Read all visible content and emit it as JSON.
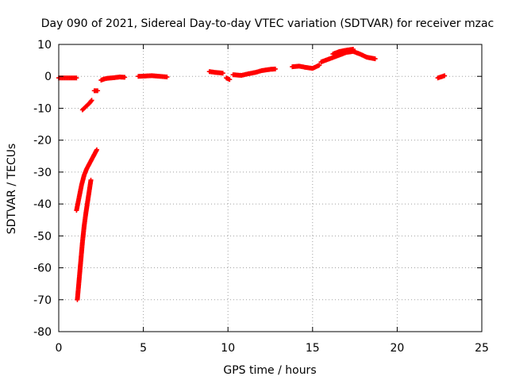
{
  "chart_data": {
    "type": "scatter",
    "title": "Day 090 of 2021, Sidereal Day-to-day VTEC variation (SDTVAR) for receiver mzac",
    "xlabel": "GPS time / hours",
    "ylabel": "SDTVAR / TECUs",
    "xlim": [
      0,
      25
    ],
    "ylim": [
      -80,
      10
    ],
    "xticks": [
      0,
      5,
      10,
      15,
      20,
      25
    ],
    "yticks": [
      10,
      0,
      -10,
      -20,
      -30,
      -40,
      -50,
      -60,
      -70,
      -80
    ],
    "grid": true,
    "marker": "+",
    "series_color": "#ff0000",
    "series": [
      {
        "name": "SDTVAR",
        "segments": [
          {
            "x": [
              0.0,
              1.05
            ],
            "y": [
              -0.5,
              -0.5
            ]
          },
          {
            "x": [
              1.05,
              1.2,
              1.35,
              1.5,
              1.65,
              1.8,
              1.95,
              2.1,
              2.25
            ],
            "y": [
              -42.0,
              -38.0,
              -34.0,
              -31.0,
              -29.0,
              -27.5,
              -26.0,
              -24.5,
              -23.0
            ]
          },
          {
            "x": [
              1.1,
              1.2,
              1.3,
              1.4,
              1.5,
              1.6,
              1.7,
              1.8,
              1.9
            ],
            "y": [
              -70.0,
              -64.0,
              -58.0,
              -52.0,
              -47.0,
              -43.0,
              -39.5,
              -36.0,
              -32.5
            ]
          },
          {
            "x": [
              1.4,
              1.6,
              1.8,
              1.95
            ],
            "y": [
              -10.5,
              -9.5,
              -8.5,
              -7.5
            ]
          },
          {
            "x": [
              2.1,
              2.3
            ],
            "y": [
              -4.5,
              -4.5
            ]
          },
          {
            "x": [
              2.5,
              2.7,
              2.9,
              3.1,
              3.3,
              3.6,
              3.9
            ],
            "y": [
              -1.2,
              -0.8,
              -0.6,
              -0.5,
              -0.4,
              -0.2,
              -0.3
            ]
          },
          {
            "x": [
              4.7,
              5.5,
              6.4
            ],
            "y": [
              0.0,
              0.2,
              -0.2
            ]
          },
          {
            "x": [
              8.9,
              9.3,
              9.7
            ],
            "y": [
              1.5,
              1.2,
              1.0
            ]
          },
          {
            "x": [
              9.9,
              10.1
            ],
            "y": [
              -0.5,
              -1.0
            ]
          },
          {
            "x": [
              10.3,
              10.8,
              11.2,
              11.6,
              12.0,
              12.5,
              12.8
            ],
            "y": [
              0.5,
              0.3,
              0.8,
              1.2,
              1.8,
              2.2,
              2.3
            ]
          },
          {
            "x": [
              13.8,
              14.2,
              14.6,
              15.0,
              15.4
            ],
            "y": [
              3.0,
              3.2,
              2.8,
              2.5,
              3.5
            ]
          },
          {
            "x": [
              15.5,
              16.0,
              16.5,
              17.0,
              17.4,
              17.8,
              18.2,
              18.7
            ],
            "y": [
              4.5,
              5.5,
              6.5,
              7.5,
              7.8,
              7.0,
              6.0,
              5.5
            ]
          },
          {
            "x": [
              16.2,
              16.6,
              17.0,
              17.4
            ],
            "y": [
              7.0,
              7.8,
              8.2,
              8.5
            ]
          },
          {
            "x": [
              22.4,
              22.8
            ],
            "y": [
              -0.5,
              0.2
            ]
          }
        ]
      }
    ]
  }
}
